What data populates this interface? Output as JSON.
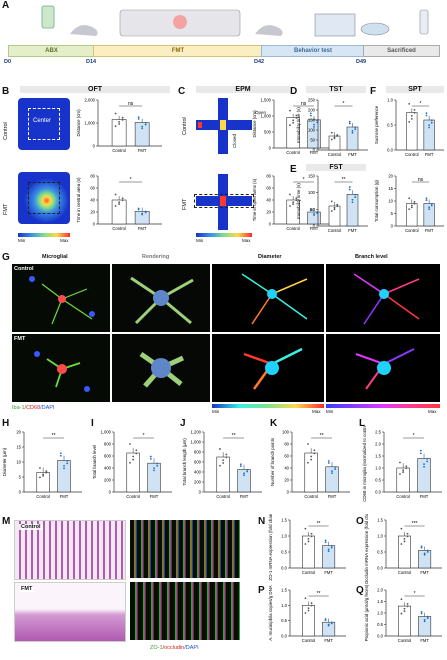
{
  "panels": {
    "A": "A",
    "B": "B",
    "C": "C",
    "D": "D",
    "E": "E",
    "F": "F",
    "G": "G",
    "H": "H",
    "I": "I",
    "J": "J",
    "K": "K",
    "L": "L",
    "M": "M",
    "N": "N",
    "O": "O",
    "P": "P",
    "Q": "Q"
  },
  "timeline": {
    "phases": [
      "ABX",
      "FMT",
      "Behavior test",
      "Sacrificed"
    ],
    "days": [
      "D0",
      "D14",
      "D42",
      "D49"
    ]
  },
  "oft": {
    "title": "OFT",
    "center": "Center",
    "control": "Control",
    "fmt": "FMT",
    "min": "Min",
    "max": "Max"
  },
  "epm": {
    "title": "EPM",
    "open": "Open",
    "closed": "Closed",
    "control": "Control",
    "fmt": "FMT",
    "min": "Min",
    "max": "Max"
  },
  "tst": {
    "title": "TST"
  },
  "fst": {
    "title": "FST"
  },
  "spt": {
    "title": "SPT"
  },
  "microglia": {
    "cols": [
      "Microglial",
      "Rendering",
      "Diameter",
      "Branch level"
    ],
    "control": "Control",
    "fmt": "FMT",
    "stain": [
      "Iba-1",
      "/CD68",
      "/DAPI"
    ],
    "min": "Min",
    "max": "Max"
  },
  "histo": {
    "control": "Control",
    "fmt": "FMT",
    "stain": [
      "ZO-1",
      "/occludin",
      "/DAPI"
    ]
  },
  "sig": {
    "ns": "ns",
    "one": "*",
    "two": "**",
    "three": "***"
  },
  "chart_data": [
    {
      "id": "B-dist",
      "type": "bar",
      "ylabel": "Distance (cm)",
      "categories": [
        "Control",
        "FMT"
      ],
      "values": [
        1150,
        1020
      ],
      "ylim": [
        0,
        2000
      ],
      "ticks": [
        "0",
        "1,000",
        "2,000"
      ],
      "sig": "ns"
    },
    {
      "id": "B-center",
      "type": "bar",
      "ylabel": "Time in central area (s)",
      "categories": [
        "Control",
        "FMT"
      ],
      "values": [
        40,
        21
      ],
      "ylim": [
        0,
        80
      ],
      "ticks": [
        "0",
        "20",
        "40",
        "60",
        "80"
      ],
      "sig": "*"
    },
    {
      "id": "C-dist",
      "type": "bar",
      "ylabel": "Distance (cm)",
      "categories": [
        "Control",
        "FMT"
      ],
      "values": [
        950,
        880
      ],
      "ylim": [
        0,
        1500
      ],
      "ticks": [
        "0",
        "500",
        "1,000",
        "1,500"
      ],
      "sig": "ns"
    },
    {
      "id": "C-open",
      "type": "bar",
      "ylabel": "Time in open arms (s)",
      "categories": [
        "Control",
        "FMT"
      ],
      "values": [
        40,
        20
      ],
      "ylim": [
        0,
        80
      ],
      "ticks": [
        "0",
        "20",
        "40",
        "60",
        "80"
      ],
      "sig": "*"
    },
    {
      "id": "D",
      "type": "bar",
      "ylabel": "Immobility time (s)",
      "categories": [
        "Control",
        "FMT"
      ],
      "values": [
        70,
        115
      ],
      "ylim": [
        0,
        250
      ],
      "ticks": [
        "0",
        "50",
        "100",
        "150",
        "200",
        "250"
      ],
      "sig": "*"
    },
    {
      "id": "E",
      "type": "bar",
      "ylabel": "Immobility time (s)",
      "categories": [
        "Control",
        "FMT"
      ],
      "values": [
        60,
        95
      ],
      "ylim": [
        0,
        150
      ],
      "ticks": [
        "0",
        "50",
        "100",
        "150"
      ],
      "sig": "**"
    },
    {
      "id": "F-sp",
      "type": "bar",
      "ylabel": "Sucrose preference",
      "categories": [
        "Control",
        "FMT"
      ],
      "values": [
        0.75,
        0.6
      ],
      "ylim": [
        0,
        1.0
      ],
      "ticks": [
        "0.0",
        "0.5",
        "1.0"
      ],
      "sig": "*"
    },
    {
      "id": "F-tc",
      "type": "bar",
      "ylabel": "Total consumption (g)",
      "categories": [
        "Control",
        "FMT"
      ],
      "values": [
        9,
        9
      ],
      "ylim": [
        0,
        20
      ],
      "ticks": [
        "0",
        "5",
        "10",
        "15",
        "20"
      ],
      "sig": "ns"
    },
    {
      "id": "H",
      "type": "bar",
      "ylabel": "Diameter (μm)",
      "categories": [
        "Control",
        "FMT"
      ],
      "values": [
        6.5,
        10.5
      ],
      "ylim": [
        0,
        20
      ],
      "ticks": [
        "0",
        "5",
        "10",
        "15",
        "20"
      ],
      "sig": "**"
    },
    {
      "id": "I",
      "type": "bar",
      "ylabel": "Total branch level",
      "categories": [
        "Control",
        "FMT"
      ],
      "values": [
        650,
        480
      ],
      "ylim": [
        0,
        1000
      ],
      "ticks": [
        "0",
        "200",
        "400",
        "600",
        "800",
        "1,000"
      ],
      "sig": "*"
    },
    {
      "id": "J",
      "type": "bar",
      "ylabel": "Total branch length (μm)",
      "categories": [
        "Control",
        "FMT"
      ],
      "values": [
        700,
        450
      ],
      "ylim": [
        0,
        1200
      ],
      "ticks": [
        "0",
        "200",
        "400",
        "600",
        "800",
        "1,000",
        "1,200"
      ],
      "sig": "**"
    },
    {
      "id": "K",
      "type": "bar",
      "ylabel": "Number of branch points",
      "categories": [
        "Control",
        "FMT"
      ],
      "values": [
        65,
        42
      ],
      "ylim": [
        0,
        100
      ],
      "ticks": [
        "0",
        "20",
        "40",
        "60",
        "80",
        "100"
      ],
      "sig": "**"
    },
    {
      "id": "L",
      "type": "bar",
      "ylabel": "CD68 in microglia (normalized to control)",
      "categories": [
        "Control",
        "FMT"
      ],
      "values": [
        1.0,
        1.4
      ],
      "ylim": [
        0,
        2.5
      ],
      "ticks": [
        "0.0",
        "0.5",
        "1.0",
        "1.5",
        "2.0",
        "2.5"
      ],
      "sig": "*"
    },
    {
      "id": "N",
      "type": "bar",
      "ylabel": "ZO-1 mRNA expression (fold change)",
      "categories": [
        "Control",
        "FMT"
      ],
      "values": [
        1.0,
        0.7
      ],
      "ylim": [
        0,
        1.5
      ],
      "ticks": [
        "0.0",
        "0.5",
        "1.0",
        "1.5"
      ],
      "sig": "**"
    },
    {
      "id": "O",
      "type": "bar",
      "ylabel": "Occludin mRNA expression (fold change)",
      "categories": [
        "Control",
        "FMT"
      ],
      "values": [
        1.0,
        0.55
      ],
      "ylim": [
        0,
        1.5
      ],
      "ticks": [
        "0.0",
        "0.5",
        "1.0",
        "1.5"
      ],
      "sig": "***"
    },
    {
      "id": "P",
      "type": "bar",
      "ylabel": "A. muciniphila copies/g DNA",
      "categories": [
        "Control",
        "FMT"
      ],
      "values": [
        1.0,
        0.45
      ],
      "ylim": [
        0,
        1.5
      ],
      "ticks": [
        "0.0",
        "0.5",
        "1.0",
        "1.5"
      ],
      "sig": "**"
    },
    {
      "id": "Q",
      "type": "bar",
      "ylabel": "Propionic acid (μmol/g feces)",
      "categories": [
        "Control",
        "FMT"
      ],
      "values": [
        1.3,
        0.85
      ],
      "ylim": [
        0,
        2.0
      ],
      "ticks": [
        "0.0",
        "0.5",
        "1.0",
        "1.5",
        "2.0"
      ],
      "sig": "*"
    }
  ]
}
